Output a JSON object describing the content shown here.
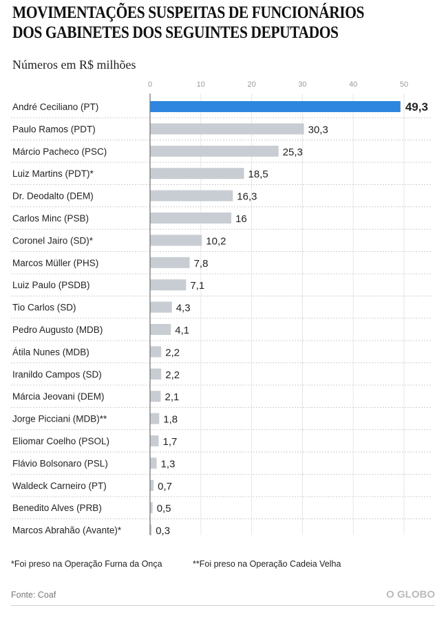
{
  "chart_data": {
    "type": "bar",
    "title": "MOVIMENTAÇÕES SUSPEITAS DE FUNCIONÁRIOS DOS GABINETES DOS SEGUINTES DEPUTADOS",
    "title_lines": [
      "MOVIMENTAÇÕES SUSPEITAS DE FUNCIONÁRIOS",
      "DOS GABINETES DOS SEGUINTES DEPUTADOS"
    ],
    "subtitle": "Números em R$ milhões",
    "xlim": [
      0,
      50
    ],
    "ticks": [
      "0",
      "10",
      "20",
      "30",
      "40",
      "50"
    ],
    "tick_values": [
      0,
      10,
      20,
      30,
      40,
      50
    ],
    "categories": [
      "André Ceciliano (PT)",
      "Paulo Ramos (PDT)",
      "Márcio Pacheco (PSC)",
      "Luiz Martins (PDT)*",
      "Dr. Deodalto (DEM)",
      "Carlos Minc (PSB)",
      "Coronel Jairo (SD)*",
      "Marcos Müller (PHS)",
      "Luiz Paulo (PSDB)",
      "Tio Carlos (SD)",
      "Pedro Augusto (MDB)",
      "Átila Nunes (MDB)",
      "Iranildo Campos (SD)",
      "Márcia Jeovani (DEM)",
      "Jorge Picciani (MDB)**",
      "Eliomar Coelho (PSOL)",
      "Flávio Bolsonaro (PSL)",
      "Waldeck Carneiro (PT)",
      "Benedito Alves (PRB)",
      "Marcos Abrahão (Avante)*"
    ],
    "values": [
      49.3,
      30.3,
      25.3,
      18.5,
      16.3,
      16,
      10.2,
      7.8,
      7.1,
      4.3,
      4.1,
      2.2,
      2.2,
      2.1,
      1.8,
      1.7,
      1.3,
      0.7,
      0.5,
      0.3
    ],
    "value_labels": [
      "49,3",
      "30,3",
      "25,3",
      "18,5",
      "16,3",
      "16",
      "10,2",
      "7,8",
      "7,1",
      "4,3",
      "4,1",
      "2,2",
      "2,2",
      "2,1",
      "1,8",
      "1,7",
      "1,3",
      "0,7",
      "0,5",
      "0,3"
    ],
    "highlight_color": "#2e86de",
    "bar_color": "#c8cdd3"
  },
  "footnotes": [
    "*Foi preso na Operação Furna da Onça",
    "**Foi preso na Operação Cadeia Velha"
  ],
  "source": "Fonte: Coaf",
  "logo": "O GLOBO"
}
